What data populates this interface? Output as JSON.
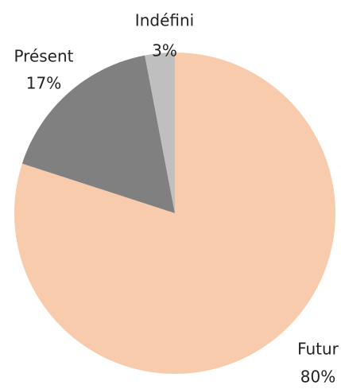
{
  "chart_data": {
    "type": "pie",
    "categories": [
      "Futur",
      "Présent",
      "Indéfini"
    ],
    "values": [
      80,
      17,
      3
    ],
    "value_labels": [
      "80%",
      "17%",
      "3%"
    ],
    "colors": [
      "#f8cbad",
      "#808080",
      "#bfbfbf"
    ]
  }
}
